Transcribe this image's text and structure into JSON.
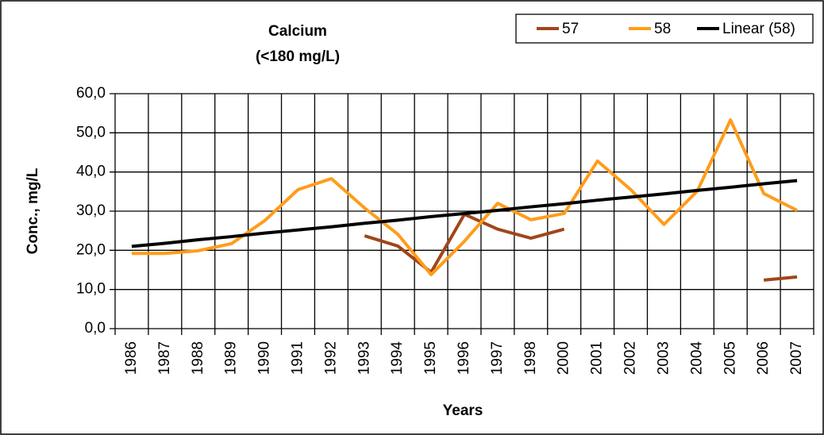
{
  "chart_data": {
    "type": "line",
    "title": "Calcium",
    "subtitle": "(<180 mg/L)",
    "x_label": "Years",
    "y_label": "Conc., mg/L",
    "categories": [
      "1986",
      "1987",
      "1988",
      "1989",
      "1990",
      "1991",
      "1992",
      "1993",
      "1994",
      "1995",
      "1996",
      "1997",
      "1998",
      "2000",
      "2001",
      "2002",
      "2003",
      "2004",
      "2005",
      "2006",
      "2007"
    ],
    "series": [
      {
        "name": "57",
        "color": "#a0461a",
        "values": [
          null,
          null,
          null,
          null,
          null,
          null,
          null,
          23.7,
          21.1,
          14.4,
          29.2,
          25.4,
          23.1,
          25.4,
          null,
          null,
          null,
          null,
          null,
          12.4,
          13.2
        ]
      },
      {
        "name": "58",
        "color": "#ff9c1a",
        "values": [
          19.2,
          19.2,
          19.9,
          21.7,
          27.6,
          35.5,
          38.3,
          30.8,
          24.1,
          13.8,
          22.3,
          32.0,
          27.8,
          29.4,
          42.8,
          35.5,
          26.6,
          35.1,
          53.3,
          34.5,
          30.2
        ]
      },
      {
        "name": "Linear (58)",
        "color": "#000000",
        "values": [
          21.0,
          21.8,
          22.7,
          23.5,
          24.4,
          25.2,
          26.0,
          26.9,
          27.7,
          28.6,
          29.4,
          30.2,
          31.1,
          31.9,
          32.8,
          33.6,
          34.4,
          35.3,
          36.1,
          37.0,
          37.8
        ]
      }
    ],
    "ylim": [
      0,
      60
    ],
    "yticks": [
      {
        "value": 0,
        "label": "0,0"
      },
      {
        "value": 10,
        "label": "10,0"
      },
      {
        "value": 20,
        "label": "20,0"
      },
      {
        "value": 30,
        "label": "30,0"
      },
      {
        "value": 40,
        "label": "40,0"
      },
      {
        "value": 50,
        "label": "50,0"
      },
      {
        "value": 60,
        "label": "60,0"
      }
    ],
    "grid": true,
    "legend": "top-right"
  }
}
